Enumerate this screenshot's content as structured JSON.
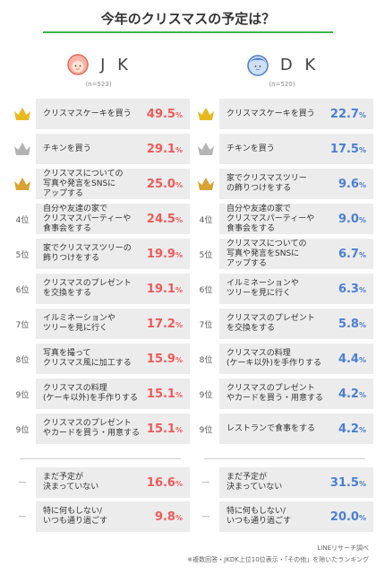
{
  "header": {
    "title": "今年のクリスマスの予定は？"
  },
  "colors": {
    "accent": "#3cb54a",
    "jk": "#ee5a5a",
    "dk": "#4a7fd4",
    "gold": "#e8b820",
    "silver": "#b4b4b4",
    "bronze": "#d9a233",
    "box": "#ececec"
  },
  "chart_data": [
    {
      "type": "bar",
      "title": "今年のクリスマスの予定は？",
      "group": "J K",
      "n": "(n=523)",
      "ranks": [
        "crown-gold",
        "crown-silver",
        "crown-bronze",
        "4位",
        "5位",
        "6位",
        "7位",
        "8位",
        "9位",
        "9位",
        "—",
        "—"
      ],
      "categories": [
        "クリスマスケーキを買う",
        "チキンを買う",
        "クリスマスについての\n写真や発言をSNSに\nアップする",
        "自分や友達の家で\nクリスマスパーティーや\n食事会をする",
        "家でクリスマスツリーの\n飾りつけをする",
        "クリスマスのプレゼント\nを交換をする",
        "イルミネーションや\nツリーを見に行く",
        "写真を撮って\nクリスマス風に加工する",
        "クリスマスの料理\n(ケーキ以外)を手作りする",
        "クリスマスのプレゼント\nやカードを買う・用意する",
        "まだ予定が\n決まっていない",
        "特に何もしない/\nいつも通り過ごす"
      ],
      "values": [
        49.5,
        29.1,
        25.0,
        24.5,
        19.9,
        19.1,
        17.2,
        15.9,
        15.1,
        15.1,
        16.6,
        9.8
      ],
      "unit": "%"
    },
    {
      "type": "bar",
      "group": "D K",
      "n": "(n=520)",
      "ranks": [
        "crown-gold",
        "crown-silver",
        "crown-bronze",
        "4位",
        "5位",
        "6位",
        "7位",
        "8位",
        "9位",
        "9位",
        "—",
        "—"
      ],
      "categories": [
        "クリスマスケーキを買う",
        "チキンを買う",
        "家でクリスマスツリー\nの飾りつけをする",
        "自分や友達の家で\nクリスマスパーティーや\n食事会をする",
        "クリスマスについての\n写真や発言をSNSに\nアップする",
        "イルミネーションや\nツリーを見に行く",
        "クリスマスのプレゼント\nを交換をする",
        "クリスマスの料理\n(ケーキ以外)を手作りする",
        "クリスマスのプレゼント\nやカードを買う・用意する",
        "レストランで食事をする",
        "まだ予定が\n決まっていない",
        "特に何もしない/\nいつも通り過ごす"
      ],
      "values": [
        22.7,
        17.5,
        9.6,
        9.0,
        6.7,
        6.3,
        5.8,
        4.4,
        4.2,
        4.2,
        31.5,
        20.0
      ],
      "unit": "%"
    }
  ],
  "footer": {
    "source": "LINEリサーチ調べ",
    "note": "※複数回答・JKDK上位10位表示・「その他」を除いたランキング"
  }
}
